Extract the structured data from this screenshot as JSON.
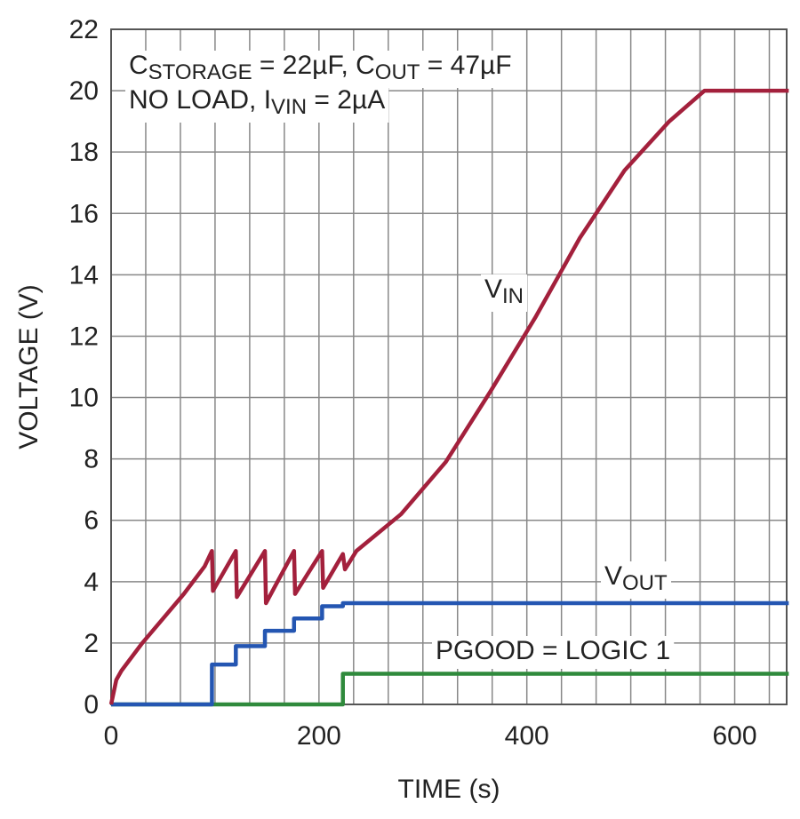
{
  "chart_data": {
    "type": "line",
    "x_label": "TIME (s)",
    "y_label": "VOLTAGE (V)",
    "xlim": [
      0,
      650
    ],
    "ylim": [
      0,
      22
    ],
    "xticks": [
      0,
      200,
      400,
      600
    ],
    "yticks": [
      0,
      2,
      4,
      6,
      8,
      10,
      12,
      14,
      16,
      18,
      20,
      22
    ],
    "xgrid": [
      0,
      33.33,
      66.67,
      100,
      133.33,
      166.67,
      200,
      233.33,
      266.67,
      300,
      333.33,
      366.67,
      400,
      433.33,
      466.67,
      500,
      533.33,
      566.67,
      600,
      633.33
    ],
    "grid": true,
    "series": [
      {
        "color": "#a3203c",
        "x": [
          0,
          5,
          10,
          30,
          50,
          70,
          90,
          97,
          98,
          120,
          121,
          148,
          149,
          176,
          177,
          203,
          204,
          223,
          225,
          236,
          279,
          322,
          365,
          408,
          451,
          494,
          537,
          571,
          652
        ],
        "values": [
          0,
          0.8,
          1.1,
          2.0,
          2.8,
          3.6,
          4.5,
          5.0,
          3.7,
          5.0,
          3.5,
          5.0,
          3.3,
          5.0,
          3.6,
          5.0,
          3.8,
          4.9,
          4.4,
          5.0,
          6.2,
          7.9,
          10.2,
          12.6,
          15.2,
          17.4,
          19.0,
          20.0,
          20.0
        ]
      },
      {
        "color": "#2456b2",
        "x": [
          0,
          97,
          97,
          120,
          120,
          148,
          148,
          176,
          176,
          203,
          203,
          223,
          223,
          652
        ],
        "values": [
          0,
          0,
          1.3,
          1.3,
          1.9,
          1.9,
          2.4,
          2.4,
          2.8,
          2.8,
          3.2,
          3.2,
          3.3,
          3.3
        ]
      },
      {
        "color": "#2f8a3c",
        "x": [
          0,
          223,
          223,
          652
        ],
        "values": [
          0,
          0,
          1.0,
          1.0
        ]
      }
    ],
    "annotations": [
      {
        "parts": [
          {
            "text": "C"
          },
          {
            "text": "STORAGE",
            "sub": true
          },
          {
            "text": " = 22µF, C"
          },
          {
            "text": "OUT",
            "sub": true
          },
          {
            "text": " = 47µF"
          }
        ]
      },
      {
        "parts": [
          {
            "text": "NO LOAD, I"
          },
          {
            "text": "VIN",
            "sub": true
          },
          {
            "text": " = 2µA"
          }
        ]
      },
      {
        "parts": [
          {
            "text": "V"
          },
          {
            "text": "IN",
            "sub": true
          }
        ]
      },
      {
        "parts": [
          {
            "text": "V"
          },
          {
            "text": "OUT",
            "sub": true
          }
        ]
      },
      {
        "parts": [
          {
            "text": "PGOOD = LOGIC 1"
          }
        ]
      }
    ]
  }
}
